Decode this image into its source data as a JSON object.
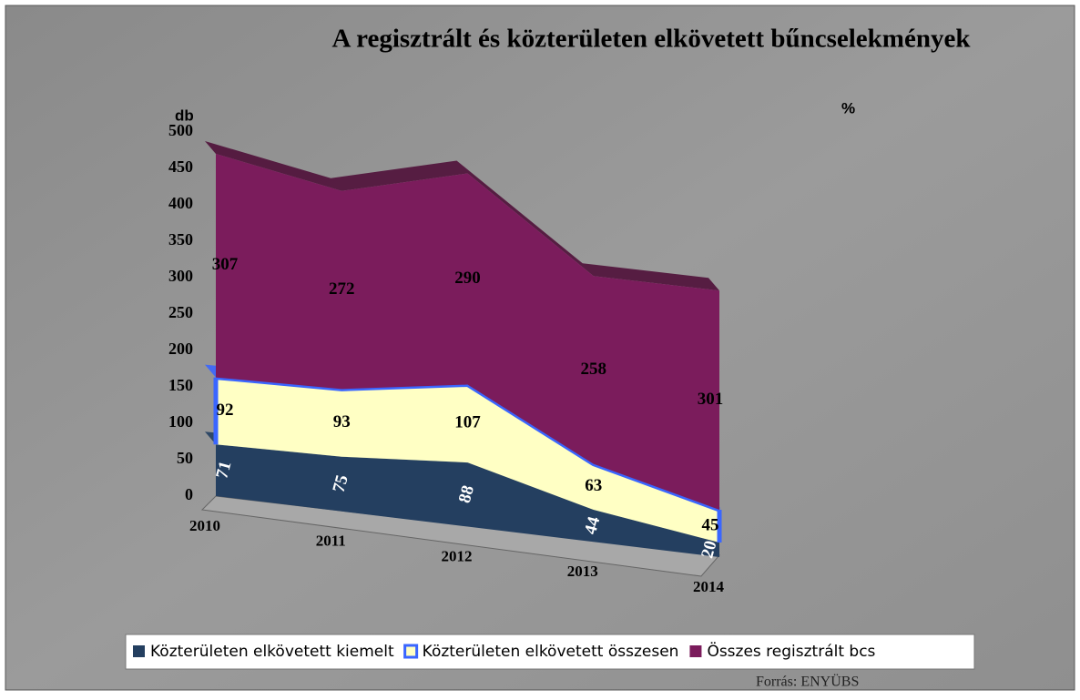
{
  "chart_data": {
    "type": "area",
    "stacked": true,
    "title": "A regisztrált és közterületen elkövetett bűncselekmények",
    "y_axis_label": "db",
    "y2_axis_label": "%",
    "source": "Forrás: ENYÜBS",
    "categories": [
      "2010",
      "2011",
      "2012",
      "2013",
      "2014"
    ],
    "series": [
      {
        "name": "Közterületen elkövetett kiemelt",
        "color": "#243f60",
        "values": [
          71,
          75,
          88,
          44,
          20
        ]
      },
      {
        "name": "Közterületen elkövetett összesen",
        "color": "#ffffc4",
        "edge": "#3a66ff",
        "values": [
          92,
          93,
          107,
          63,
          45
        ]
      },
      {
        "name": "Összes regisztrált bcs",
        "color": "#7b1c5c",
        "values": [
          307,
          272,
          290,
          258,
          301
        ]
      }
    ],
    "ylim": [
      0,
      500
    ],
    "yticks": [
      0,
      50,
      100,
      150,
      200,
      250,
      300,
      350,
      400,
      450,
      500
    ],
    "legend": "bottom"
  }
}
